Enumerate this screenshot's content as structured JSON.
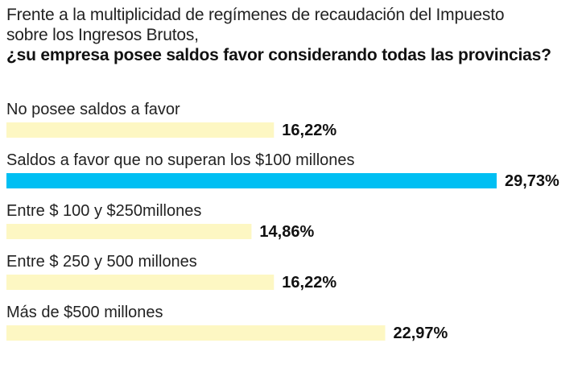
{
  "colors": {
    "highlight": "#00bff3",
    "bar": "#fdf7c3",
    "text": "#222222"
  },
  "chart_data": {
    "type": "bar",
    "orientation": "horizontal",
    "title_line1": "Frente a la multiplicidad de regímenes de recaudación del Impuesto",
    "title_line2": "sobre los Ingresos Brutos,",
    "title_line3": "¿su empresa posee saldos favor considerando todas las provincias?",
    "categories": [
      "No posee saldos a favor",
      "Saldos a favor que no superan los $100 millones",
      "Entre $ 100 y $250millones",
      "Entre $ 250 y 500 millones",
      "Más de $500 millones"
    ],
    "values": [
      16.22,
      29.73,
      14.86,
      16.22,
      22.97
    ],
    "value_labels": [
      "16,22%",
      "29,73%",
      "14,86%",
      "16,22%",
      "22,97%"
    ],
    "highlight_index": 1,
    "unit": "%",
    "xlim": [
      0,
      29.73
    ]
  }
}
